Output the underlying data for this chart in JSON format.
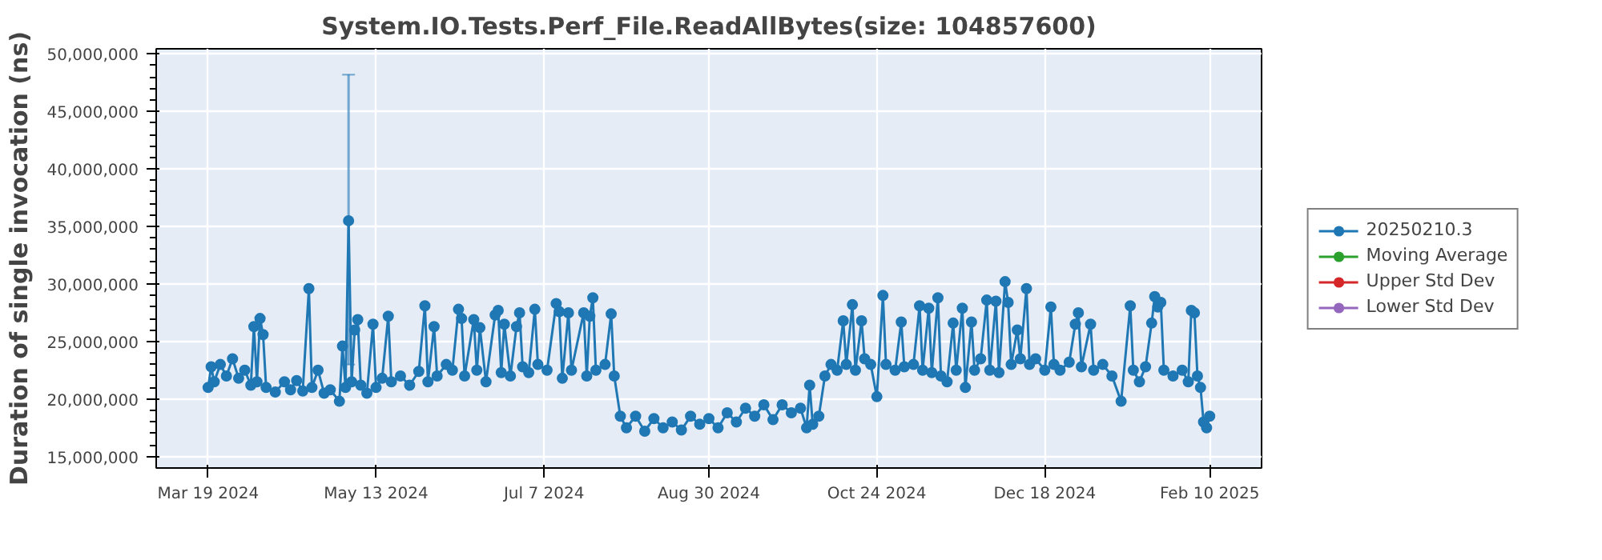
{
  "chart_data": {
    "type": "line",
    "title": "System.IO.Tests.Perf_File.ReadAllBytes(size: 104857600)",
    "ylabel": "Duration of single invocation (ns)",
    "xlim": [
      "2024-03-02",
      "2025-02-27"
    ],
    "xticks": [
      {
        "value": "2024-03-19",
        "label": "Mar 19 2024"
      },
      {
        "value": "2024-05-13",
        "label": "May 13 2024"
      },
      {
        "value": "2024-07-07",
        "label": "Jul 7 2024"
      },
      {
        "value": "2024-08-30",
        "label": "Aug 30 2024"
      },
      {
        "value": "2024-10-24",
        "label": "Oct 24 2024"
      },
      {
        "value": "2024-12-18",
        "label": "Dec 18 2024"
      },
      {
        "value": "2025-02-10",
        "label": "Feb 10 2025"
      }
    ],
    "ylim": [
      14000000,
      50450000
    ],
    "yticks": [
      {
        "value": 15000000,
        "label": "15,000,000"
      },
      {
        "value": 16000000,
        "label": null
      },
      {
        "value": 17000000,
        "label": null
      },
      {
        "value": 18000000,
        "label": null
      },
      {
        "value": 19000000,
        "label": null
      },
      {
        "value": 20000000,
        "label": "20,000,000"
      },
      {
        "value": 21000000,
        "label": null
      },
      {
        "value": 22000000,
        "label": null
      },
      {
        "value": 23000000,
        "label": null
      },
      {
        "value": 24000000,
        "label": null
      },
      {
        "value": 25000000,
        "label": "25,000,000"
      },
      {
        "value": 26000000,
        "label": null
      },
      {
        "value": 27000000,
        "label": null
      },
      {
        "value": 28000000,
        "label": null
      },
      {
        "value": 29000000,
        "label": null
      },
      {
        "value": 30000000,
        "label": "30,000,000"
      },
      {
        "value": 31000000,
        "label": null
      },
      {
        "value": 32000000,
        "label": null
      },
      {
        "value": 33000000,
        "label": null
      },
      {
        "value": 34000000,
        "label": null
      },
      {
        "value": 35000000,
        "label": "35,000,000"
      },
      {
        "value": 36000000,
        "label": null
      },
      {
        "value": 37000000,
        "label": null
      },
      {
        "value": 38000000,
        "label": null
      },
      {
        "value": 39000000,
        "label": null
      },
      {
        "value": 40000000,
        "label": "40,000,000"
      },
      {
        "value": 41000000,
        "label": null
      },
      {
        "value": 42000000,
        "label": null
      },
      {
        "value": 43000000,
        "label": null
      },
      {
        "value": 44000000,
        "label": null
      },
      {
        "value": 45000000,
        "label": "45,000,000"
      },
      {
        "value": 46000000,
        "label": null
      },
      {
        "value": 47000000,
        "label": null
      },
      {
        "value": 48000000,
        "label": null
      },
      {
        "value": 49000000,
        "label": null
      },
      {
        "value": 50000000,
        "label": "50,000,000"
      }
    ],
    "grid": true,
    "legend": "right",
    "marker": "circle",
    "line_style": "solid",
    "series": [
      {
        "name": "20250210.3",
        "color": "#1f77b4",
        "x": [
          "2024-03-19",
          "2024-03-20",
          "2024-03-21",
          "2024-03-23",
          "2024-03-25",
          "2024-03-27",
          "2024-03-29",
          "2024-03-31",
          "2024-04-02",
          "2024-04-03",
          "2024-04-04",
          "2024-04-05",
          "2024-04-06",
          "2024-04-07",
          "2024-04-10",
          "2024-04-13",
          "2024-04-15",
          "2024-04-17",
          "2024-04-19",
          "2024-04-21",
          "2024-04-22",
          "2024-04-24",
          "2024-04-26",
          "2024-04-28",
          "2024-05-01",
          "2024-05-02",
          "2024-05-03",
          "2024-05-04",
          "2024-05-05",
          "2024-05-06",
          "2024-05-07",
          "2024-05-08",
          "2024-05-10",
          "2024-05-12",
          "2024-05-13",
          "2024-05-15",
          "2024-05-17",
          "2024-05-18",
          "2024-05-21",
          "2024-05-24",
          "2024-05-27",
          "2024-05-29",
          "2024-05-30",
          "2024-06-01",
          "2024-06-02",
          "2024-06-05",
          "2024-06-07",
          "2024-06-09",
          "2024-06-10",
          "2024-06-11",
          "2024-06-14",
          "2024-06-15",
          "2024-06-16",
          "2024-06-18",
          "2024-06-21",
          "2024-06-22",
          "2024-06-23",
          "2024-06-24",
          "2024-06-26",
          "2024-06-28",
          "2024-06-29",
          "2024-06-30",
          "2024-07-02",
          "2024-07-04",
          "2024-07-05",
          "2024-07-08",
          "2024-07-11",
          "2024-07-12",
          "2024-07-13",
          "2024-07-15",
          "2024-07-16",
          "2024-07-20",
          "2024-07-21",
          "2024-07-22",
          "2024-07-23",
          "2024-07-24",
          "2024-07-27",
          "2024-07-29",
          "2024-07-30",
          "2024-08-01",
          "2024-08-03",
          "2024-08-06",
          "2024-08-09",
          "2024-08-12",
          "2024-08-15",
          "2024-08-18",
          "2024-08-21",
          "2024-08-24",
          "2024-08-27",
          "2024-08-30",
          "2024-09-02",
          "2024-09-05",
          "2024-09-08",
          "2024-09-11",
          "2024-09-14",
          "2024-09-17",
          "2024-09-20",
          "2024-09-23",
          "2024-09-26",
          "2024-09-29",
          "2024-10-01",
          "2024-10-02",
          "2024-10-03",
          "2024-10-05",
          "2024-10-07",
          "2024-10-09",
          "2024-10-11",
          "2024-10-13",
          "2024-10-14",
          "2024-10-16",
          "2024-10-17",
          "2024-10-19",
          "2024-10-20",
          "2024-10-22",
          "2024-10-24",
          "2024-10-26",
          "2024-10-27",
          "2024-10-30",
          "2024-11-01",
          "2024-11-02",
          "2024-11-05",
          "2024-11-07",
          "2024-11-08",
          "2024-11-10",
          "2024-11-11",
          "2024-11-13",
          "2024-11-14",
          "2024-11-16",
          "2024-11-18",
          "2024-11-19",
          "2024-11-21",
          "2024-11-22",
          "2024-11-24",
          "2024-11-25",
          "2024-11-27",
          "2024-11-29",
          "2024-11-30",
          "2024-12-02",
          "2024-12-03",
          "2024-12-05",
          "2024-12-06",
          "2024-12-07",
          "2024-12-09",
          "2024-12-10",
          "2024-12-12",
          "2024-12-13",
          "2024-12-15",
          "2024-12-18",
          "2024-12-20",
          "2024-12-21",
          "2024-12-23",
          "2024-12-26",
          "2024-12-28",
          "2024-12-29",
          "2024-12-30",
          "2025-01-02",
          "2025-01-03",
          "2025-01-06",
          "2025-01-09",
          "2025-01-12",
          "2025-01-15",
          "2025-01-16",
          "2025-01-18",
          "2025-01-20",
          "2025-01-22",
          "2025-01-23",
          "2025-01-24",
          "2025-01-25",
          "2025-01-26",
          "2025-01-29",
          "2025-02-01",
          "2025-02-03",
          "2025-02-04",
          "2025-02-05",
          "2025-02-06",
          "2025-02-07",
          "2025-02-08",
          "2025-02-09",
          "2025-02-10"
        ],
        "values": [
          21000000,
          22800000,
          21500000,
          23000000,
          22000000,
          23500000,
          21800000,
          22500000,
          21200000,
          26300000,
          21500000,
          27000000,
          25600000,
          21000000,
          20600000,
          21500000,
          20800000,
          21600000,
          20700000,
          29600000,
          21000000,
          22500000,
          20500000,
          20800000,
          19800000,
          24600000,
          21000000,
          35500000,
          21500000,
          26000000,
          26900000,
          21200000,
          20500000,
          26500000,
          21000000,
          21800000,
          27200000,
          21500000,
          22000000,
          21200000,
          22400000,
          28100000,
          21500000,
          26300000,
          22000000,
          23000000,
          22500000,
          27800000,
          27000000,
          22000000,
          26900000,
          22500000,
          26200000,
          21500000,
          27300000,
          27700000,
          22300000,
          26500000,
          22000000,
          26300000,
          27500000,
          22800000,
          22300000,
          27800000,
          23000000,
          22500000,
          28300000,
          27600000,
          21800000,
          27500000,
          22500000,
          27500000,
          22000000,
          27200000,
          28800000,
          22500000,
          23000000,
          27400000,
          22000000,
          18500000,
          17500000,
          18500000,
          17200000,
          18300000,
          17500000,
          18000000,
          17300000,
          18500000,
          17800000,
          18300000,
          17500000,
          18800000,
          18000000,
          19200000,
          18500000,
          19500000,
          18200000,
          19500000,
          18800000,
          19200000,
          17500000,
          21200000,
          17800000,
          18500000,
          22000000,
          23000000,
          22500000,
          26800000,
          23000000,
          28200000,
          22500000,
          26800000,
          23500000,
          23000000,
          20200000,
          29000000,
          23000000,
          22500000,
          26700000,
          22800000,
          23000000,
          28100000,
          22500000,
          27900000,
          22300000,
          28800000,
          22000000,
          21500000,
          26600000,
          22500000,
          27900000,
          21000000,
          26700000,
          22500000,
          23500000,
          28600000,
          22500000,
          28500000,
          22300000,
          30200000,
          28400000,
          23000000,
          26000000,
          23500000,
          29600000,
          23000000,
          23500000,
          22500000,
          28000000,
          23000000,
          22500000,
          23200000,
          26500000,
          27500000,
          22800000,
          26500000,
          22500000,
          23000000,
          22000000,
          19800000,
          28100000,
          22500000,
          21500000,
          22800000,
          26600000,
          28900000,
          28000000,
          28400000,
          22500000,
          22000000,
          22500000,
          21500000,
          27700000,
          27500000,
          22000000,
          21000000,
          18000000,
          17500000,
          18500000
        ],
        "errors": [
          null,
          null,
          null,
          null,
          null,
          null,
          null,
          null,
          null,
          null,
          null,
          null,
          null,
          null,
          null,
          null,
          null,
          null,
          null,
          null,
          null,
          null,
          null,
          null,
          null,
          null,
          null,
          [
            23000000,
            48200000
          ],
          null,
          null,
          null,
          null,
          null,
          null,
          null,
          null,
          null,
          null,
          null,
          null,
          null,
          null,
          null,
          null,
          null,
          null,
          null,
          null,
          null,
          null,
          null,
          null,
          null,
          null,
          null,
          null,
          null,
          null,
          null,
          null,
          null,
          null,
          null,
          null,
          null,
          null,
          null,
          null,
          null,
          null,
          null,
          null,
          null,
          null,
          null,
          null,
          null,
          null,
          null,
          null,
          null,
          null,
          null,
          null,
          null,
          null,
          null,
          null,
          null,
          null,
          null,
          null,
          null,
          null,
          null,
          null,
          null,
          null,
          null,
          null,
          null,
          null,
          null,
          null,
          null,
          null,
          null,
          null,
          null,
          null,
          null,
          null,
          null,
          null,
          null,
          null,
          null,
          null,
          null,
          null,
          null,
          null,
          null,
          null,
          null,
          null,
          null,
          null,
          null,
          null,
          null,
          null,
          null,
          null,
          null,
          null,
          null,
          null,
          null,
          null,
          null,
          null,
          null,
          null,
          null,
          null,
          null,
          null,
          null,
          null,
          null,
          null,
          null,
          null,
          null,
          null,
          null,
          null,
          null,
          null,
          null,
          null,
          null,
          null,
          null,
          null,
          null,
          null,
          null,
          null,
          null,
          null,
          null,
          null,
          null,
          null,
          null,
          null,
          null
        ]
      },
      {
        "name": "Moving Average",
        "color": "#2ca02c"
      },
      {
        "name": "Upper Std Dev",
        "color": "#d62728"
      },
      {
        "name": "Lower Std Dev",
        "color": "#9467bd"
      }
    ]
  }
}
